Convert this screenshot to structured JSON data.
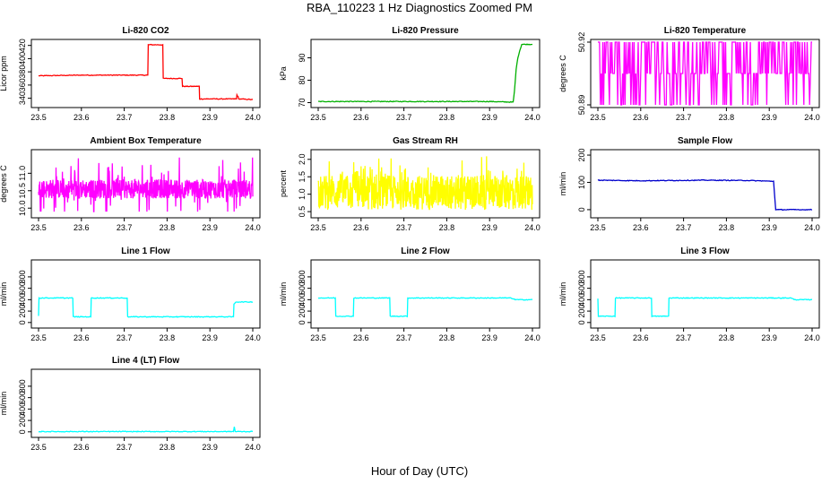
{
  "figure": {
    "title": "RBA_110223  1 Hz Diagnostics Zoomed PM",
    "xlabel": "Hour of Day (UTC)"
  },
  "chart_data": [
    {
      "type": "line",
      "title": "Li-820 CO2",
      "ylabel": "Licor ppm",
      "color": "#ff0000",
      "xlim": [
        23.5,
        24.0
      ],
      "ylim": [
        330,
        425
      ],
      "xticks": [
        "23.5",
        "23.6",
        "23.7",
        "23.8",
        "23.9",
        "24.0"
      ],
      "yticks": [
        "340",
        "360",
        "380",
        "400",
        "420"
      ],
      "x": [
        23.5,
        23.6,
        23.755,
        23.756,
        23.79,
        23.791,
        23.835,
        23.836,
        23.875,
        23.876,
        23.962,
        23.963,
        23.966,
        23.967,
        24.0
      ],
      "y": [
        374,
        375,
        375,
        421,
        421,
        370,
        370,
        358,
        358,
        339,
        339,
        345,
        342,
        339,
        338
      ]
    },
    {
      "type": "line",
      "title": "Li-820 Pressure",
      "ylabel": "kPa",
      "color": "#00b000",
      "xlim": [
        23.5,
        24.0
      ],
      "ylim": [
        69,
        97
      ],
      "xticks": [
        "23.5",
        "23.6",
        "23.7",
        "23.8",
        "23.9",
        "24.0"
      ],
      "yticks": [
        "70",
        "80",
        "90"
      ],
      "x": [
        23.5,
        23.7,
        23.9,
        23.955,
        23.958,
        23.962,
        23.966,
        23.97,
        23.975,
        24.0
      ],
      "y": [
        70.5,
        70.5,
        70.5,
        70.2,
        75,
        85,
        90,
        93,
        96,
        96
      ]
    },
    {
      "type": "line",
      "title": "Li-820 Temperature",
      "ylabel": "degrees C",
      "color": "#ff00ff",
      "xlim": [
        23.5,
        24.0
      ],
      "ylim": [
        50.89,
        50.92
      ],
      "xticks": [
        "23.5",
        "23.6",
        "23.7",
        "23.8",
        "23.9",
        "24.0"
      ],
      "yticks": [
        "50.89",
        "50.92"
      ],
      "x": [],
      "y": []
    },
    {
      "type": "line",
      "title": "Ambient Box Temperature",
      "ylabel": "degrees C",
      "color": "#ff00ff",
      "xlim": [
        23.5,
        24.0
      ],
      "ylim": [
        9.8,
        11.6
      ],
      "xticks": [
        "23.5",
        "23.6",
        "23.7",
        "23.8",
        "23.9",
        "24.0"
      ],
      "yticks": [
        "10.0",
        "10.5",
        "11.0"
      ],
      "x": [],
      "y": []
    },
    {
      "type": "line",
      "title": "Gas Stream RH",
      "ylabel": "percent",
      "color": "#ffff00",
      "xlim": [
        23.5,
        24.0
      ],
      "ylim": [
        0.4,
        2.2
      ],
      "xticks": [
        "23.5",
        "23.6",
        "23.7",
        "23.8",
        "23.9",
        "24.0"
      ],
      "yticks": [
        "0.5",
        "1.0",
        "1.5",
        "2.0"
      ],
      "x": [],
      "y": []
    },
    {
      "type": "line",
      "title": "Sample Flow",
      "ylabel": "ml/min",
      "color": "#0000cc",
      "xlim": [
        23.5,
        24.0
      ],
      "ylim": [
        -20,
        210
      ],
      "xticks": [
        "23.5",
        "23.6",
        "23.7",
        "23.8",
        "23.9",
        "24.0"
      ],
      "yticks": [
        "0",
        "100",
        "200"
      ],
      "x": [
        23.5,
        23.6,
        23.75,
        23.85,
        23.91,
        23.915,
        24.0
      ],
      "y": [
        108,
        106,
        108,
        107,
        104,
        0,
        0
      ]
    },
    {
      "type": "line",
      "title": "Line 1 Flow",
      "ylabel": "ml/min",
      "color": "#00ffff",
      "xlim": [
        23.5,
        24.0
      ],
      "ylim": [
        -50,
        1050
      ],
      "xticks": [
        "23.5",
        "23.6",
        "23.7",
        "23.8",
        "23.9",
        "24.0"
      ],
      "yticks": [
        "0",
        "200",
        "400",
        "600",
        "800"
      ],
      "x": [
        23.5,
        23.501,
        23.58,
        23.581,
        23.622,
        23.623,
        23.707,
        23.708,
        23.955,
        23.956,
        23.96,
        24.0
      ],
      "y": [
        120,
        430,
        430,
        100,
        100,
        430,
        430,
        100,
        100,
        320,
        360,
        360
      ]
    },
    {
      "type": "line",
      "title": "Line 2 Flow",
      "ylabel": "ml/min",
      "color": "#00ffff",
      "xlim": [
        23.5,
        24.0
      ],
      "ylim": [
        -50,
        1050
      ],
      "xticks": [
        "23.5",
        "23.6",
        "23.7",
        "23.8",
        "23.9",
        "24.0"
      ],
      "yticks": [
        "0",
        "200",
        "400",
        "600",
        "800"
      ],
      "x": [
        23.5,
        23.54,
        23.541,
        23.582,
        23.583,
        23.667,
        23.668,
        23.708,
        23.709,
        23.95,
        23.96,
        24.0
      ],
      "y": [
        430,
        430,
        110,
        110,
        430,
        430,
        110,
        110,
        430,
        430,
        400,
        400
      ]
    },
    {
      "type": "line",
      "title": "Line 3 Flow",
      "ylabel": "ml/min",
      "color": "#00ffff",
      "xlim": [
        23.5,
        24.0
      ],
      "ylim": [
        -50,
        1050
      ],
      "xticks": [
        "23.5",
        "23.6",
        "23.7",
        "23.8",
        "23.9",
        "24.0"
      ],
      "yticks": [
        "0",
        "200",
        "400",
        "600",
        "800"
      ],
      "x": [
        23.5,
        23.501,
        23.54,
        23.541,
        23.625,
        23.626,
        23.665,
        23.666,
        23.95,
        23.96,
        24.0
      ],
      "y": [
        420,
        110,
        110,
        430,
        430,
        110,
        110,
        430,
        430,
        400,
        400
      ]
    },
    {
      "type": "line",
      "title": "Line 4 (LT) Flow",
      "ylabel": "ml/min",
      "color": "#00ffff",
      "xlim": [
        23.5,
        24.0
      ],
      "ylim": [
        -50,
        1050
      ],
      "xticks": [
        "23.5",
        "23.6",
        "23.7",
        "23.8",
        "23.9",
        "24.0"
      ],
      "yticks": [
        "0",
        "200",
        "400",
        "600",
        "800"
      ],
      "x": [
        23.5,
        23.7,
        23.9,
        23.955,
        23.957,
        23.959,
        24.0
      ],
      "y": [
        5,
        5,
        5,
        5,
        90,
        5,
        5
      ]
    }
  ]
}
